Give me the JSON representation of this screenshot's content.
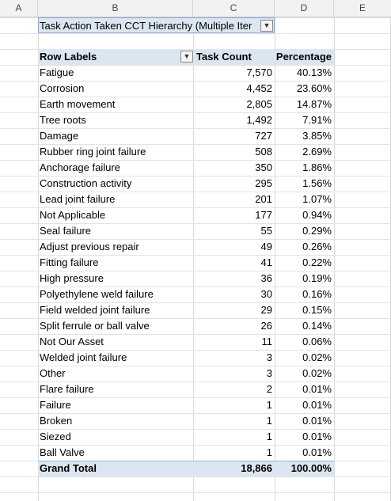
{
  "columns": [
    "A",
    "B",
    "C",
    "D",
    "E"
  ],
  "filter": {
    "label": "Task Action Taken CCT Hierarchy",
    "value": "(Multiple Items)",
    "display": "Task Action Taken CCT Hierarchy (Multiple Iter"
  },
  "pivot": {
    "headers": {
      "row_labels": "Row Labels",
      "task_count": "Task Count",
      "percentage": "Percentage"
    },
    "rows": [
      {
        "label": "Fatigue",
        "count": "7,570",
        "pct": "40.13%"
      },
      {
        "label": "Corrosion",
        "count": "4,452",
        "pct": "23.60%"
      },
      {
        "label": "Earth movement",
        "count": "2,805",
        "pct": "14.87%"
      },
      {
        "label": "Tree roots",
        "count": "1,492",
        "pct": "7.91%"
      },
      {
        "label": "Damage",
        "count": "727",
        "pct": "3.85%"
      },
      {
        "label": "Rubber ring joint failure",
        "count": "508",
        "pct": "2.69%"
      },
      {
        "label": "Anchorage failure",
        "count": "350",
        "pct": "1.86%"
      },
      {
        "label": "Construction activity",
        "count": "295",
        "pct": "1.56%"
      },
      {
        "label": "Lead joint failure",
        "count": "201",
        "pct": "1.07%"
      },
      {
        "label": "Not Applicable",
        "count": "177",
        "pct": "0.94%"
      },
      {
        "label": "Seal failure",
        "count": "55",
        "pct": "0.29%"
      },
      {
        "label": "Adjust previous repair",
        "count": "49",
        "pct": "0.26%"
      },
      {
        "label": "Fitting failure",
        "count": "41",
        "pct": "0.22%"
      },
      {
        "label": "High pressure",
        "count": "36",
        "pct": "0.19%"
      },
      {
        "label": "Polyethylene weld failure",
        "count": "30",
        "pct": "0.16%"
      },
      {
        "label": "Field welded joint failure",
        "count": "29",
        "pct": "0.15%"
      },
      {
        "label": "Split ferrule or ball valve",
        "count": "26",
        "pct": "0.14%"
      },
      {
        "label": "Not Our Asset",
        "count": "11",
        "pct": "0.06%"
      },
      {
        "label": "Welded joint failure",
        "count": "3",
        "pct": "0.02%"
      },
      {
        "label": "Other",
        "count": "3",
        "pct": "0.02%"
      },
      {
        "label": "Flare failure",
        "count": "2",
        "pct": "0.01%"
      },
      {
        "label": "Failure",
        "count": "1",
        "pct": "0.01%"
      },
      {
        "label": "Broken",
        "count": "1",
        "pct": "0.01%"
      },
      {
        "label": "Siezed",
        "count": "1",
        "pct": "0.01%"
      },
      {
        "label": "Ball Valve",
        "count": "1",
        "pct": "0.01%"
      }
    ],
    "grand_total": {
      "label": "Grand Total",
      "count": "18,866",
      "pct": "100.00%"
    }
  },
  "icons": {
    "filter": "filter-icon",
    "sort": "sort-descending-icon"
  },
  "colors": {
    "header_band": "#dce6f1",
    "grid": "#d9d9d9",
    "column_header_bg": "#f2f2f2"
  }
}
